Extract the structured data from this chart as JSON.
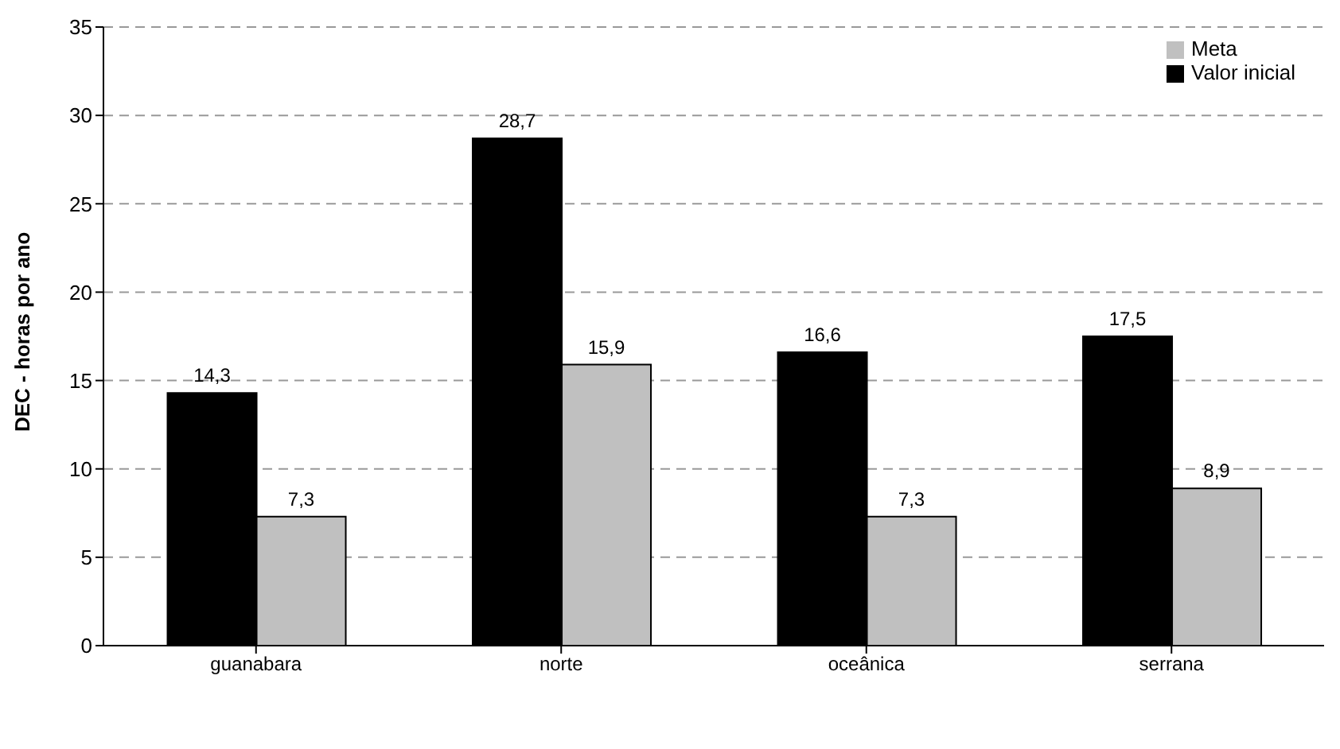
{
  "chart_data": {
    "type": "bar",
    "ylabel": "DEC - horas por ano",
    "categories": [
      "guanabara",
      "norte",
      "oceânica",
      "serrana"
    ],
    "series": [
      {
        "name": "Valor inicial",
        "color": "#000000",
        "values": [
          14.3,
          28.7,
          16.6,
          17.5
        ],
        "value_labels": [
          "14,3",
          "28,7",
          "16,6",
          "17,5"
        ]
      },
      {
        "name": "Meta",
        "color": "#c0c0c0",
        "values": [
          7.3,
          15.9,
          7.3,
          8.9
        ],
        "value_labels": [
          "7,3",
          "15,9",
          "7,3",
          "8,9"
        ]
      }
    ],
    "ylim": [
      0,
      35
    ],
    "yticks": [
      0,
      5,
      10,
      15,
      20,
      25,
      30,
      35
    ],
    "grid": "y",
    "legend": "top right"
  }
}
